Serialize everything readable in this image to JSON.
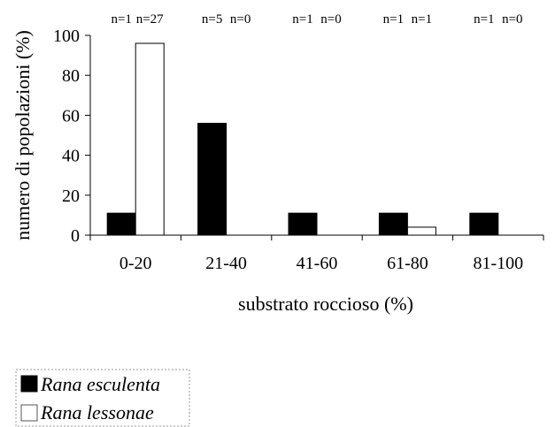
{
  "chart_data": {
    "type": "bar",
    "xlabel": "substrato roccioso (%)",
    "ylabel": "numero di popolazioni (%)",
    "ylim": [
      0,
      100
    ],
    "yticks": [
      0,
      20,
      40,
      60,
      80,
      100
    ],
    "grid": false,
    "legend_position": "bottom-left",
    "categories": [
      "0-20",
      "21-40",
      "41-60",
      "61-80",
      "81-100"
    ],
    "series": [
      {
        "name": "Rana esculenta",
        "color": "#000000",
        "values": [
          11,
          56,
          11,
          11,
          11
        ],
        "n_labels": [
          "n=1",
          "n=5",
          "n=1",
          "n=1",
          "n=1"
        ]
      },
      {
        "name": "Rana lessonae",
        "color": "#ffffff",
        "values": [
          96,
          0,
          0,
          4,
          0
        ],
        "n_labels": [
          "n=27",
          "n=0",
          "n=0",
          "n=1",
          "n=0"
        ]
      }
    ]
  }
}
